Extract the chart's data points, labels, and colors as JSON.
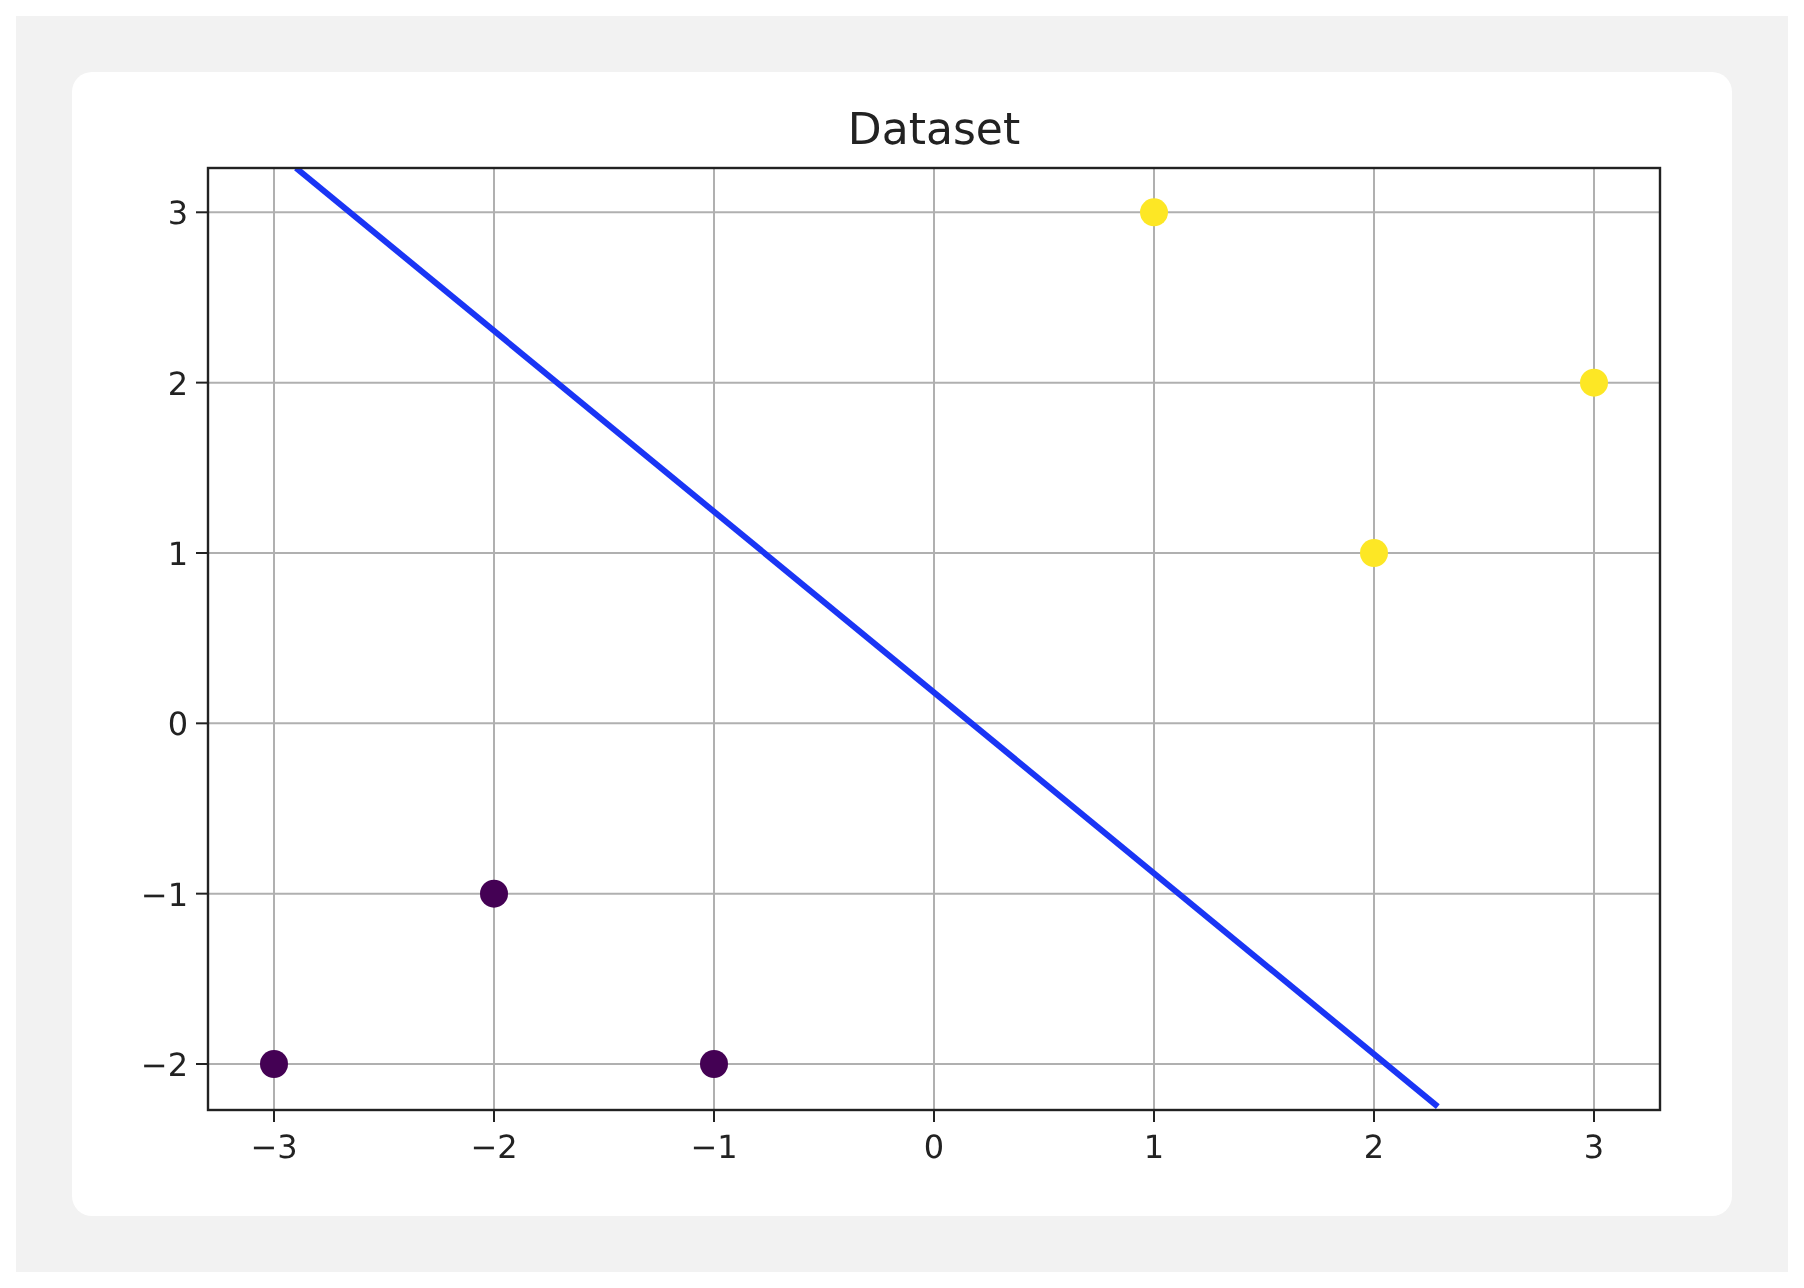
{
  "chart_data": {
    "type": "scatter",
    "title": "Dataset",
    "series": [
      {
        "color": "#440154",
        "x": [
          -3,
          -2,
          -1
        ],
        "values": [
          -2,
          -1,
          -2
        ],
        "marker": "circle"
      },
      {
        "color": "#fde725",
        "x": [
          1,
          2,
          3
        ],
        "values": [
          3,
          1,
          2
        ],
        "marker": "circle"
      },
      {
        "type": "line",
        "color": "#1a35f5",
        "x": [
          -2.9,
          2.29
        ],
        "values": [
          3.26,
          -2.25
        ]
      }
    ],
    "xlim": [
      -3.3,
      3.3
    ],
    "ylim": [
      -2.27,
      3.26
    ],
    "xticks": [
      {
        "value": -3,
        "label": "−3"
      },
      {
        "value": -2,
        "label": "−2"
      },
      {
        "value": -1,
        "label": "−1"
      },
      0,
      1,
      2,
      3
    ],
    "yticks": [
      {
        "value": -2,
        "label": "−2"
      },
      {
        "value": -1,
        "label": "−1"
      },
      0,
      1,
      2,
      3
    ],
    "grid": true
  }
}
